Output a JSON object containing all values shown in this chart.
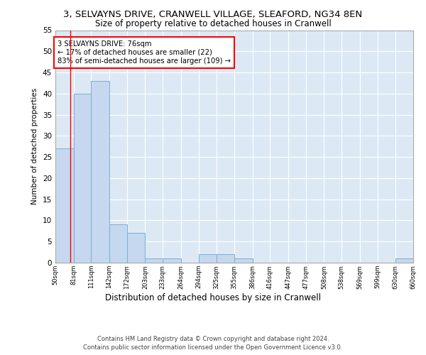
{
  "title_line1": "3, SELVAYNS DRIVE, CRANWELL VILLAGE, SLEAFORD, NG34 8EN",
  "title_line2": "Size of property relative to detached houses in Cranwell",
  "xlabel": "Distribution of detached houses by size in Cranwell",
  "ylabel": "Number of detached properties",
  "footer_line1": "Contains HM Land Registry data © Crown copyright and database right 2024.",
  "footer_line2": "Contains public sector information licensed under the Open Government Licence v3.0.",
  "bin_edges": [
    50,
    81,
    111,
    142,
    172,
    203,
    233,
    264,
    294,
    325,
    355,
    386,
    416,
    447,
    477,
    508,
    538,
    569,
    599,
    630,
    660
  ],
  "bar_heights": [
    27,
    40,
    43,
    9,
    7,
    1,
    1,
    0,
    2,
    2,
    1,
    0,
    0,
    0,
    0,
    0,
    0,
    0,
    0,
    1
  ],
  "bar_color": "#c5d8ef",
  "bar_edge_color": "#7bafd4",
  "red_line_x": 76,
  "annotation_text": "3 SELVAYNS DRIVE: 76sqm\n← 17% of detached houses are smaller (22)\n83% of semi-detached houses are larger (109) →",
  "annotation_box_color": "white",
  "annotation_box_edge_color": "red",
  "ylim": [
    0,
    55
  ],
  "yticks": [
    0,
    5,
    10,
    15,
    20,
    25,
    30,
    35,
    40,
    45,
    50,
    55
  ],
  "plot_bg_color": "#dce9f5",
  "grid_color": "white"
}
